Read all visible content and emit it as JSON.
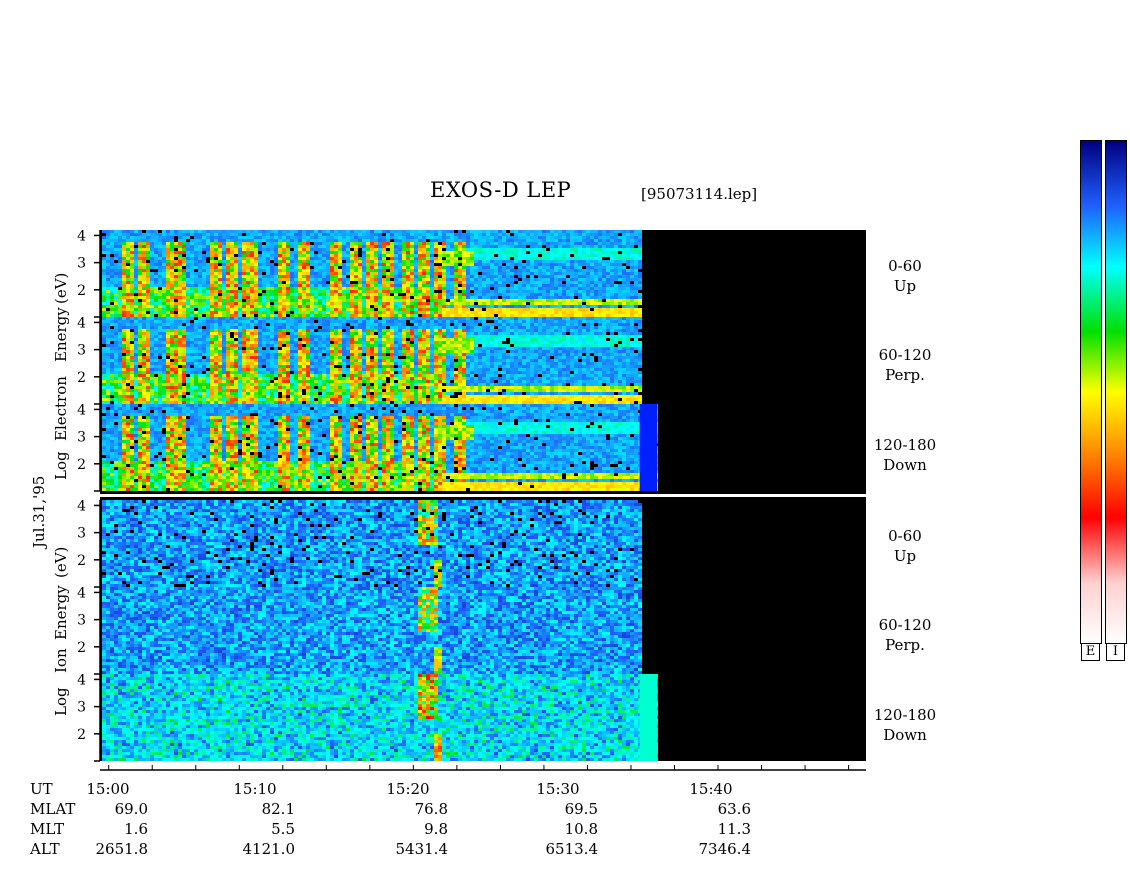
{
  "header": {
    "title": "EXOS-D LEP",
    "filename": "[95073114.lep]"
  },
  "side_labels": {
    "date": "Jul.31,'95",
    "electron": [
      "Log",
      "Electron",
      "Energy",
      "(eV)"
    ],
    "ion": [
      "Log",
      "Ion",
      "Energy",
      "(eV)"
    ]
  },
  "panels": [
    {
      "species": "electron",
      "pitch": "0-60",
      "dir": "Up"
    },
    {
      "species": "electron",
      "pitch": "60-120",
      "dir": "Perp."
    },
    {
      "species": "electron",
      "pitch": "120-180",
      "dir": "Down"
    },
    {
      "species": "ion",
      "pitch": "0-60",
      "dir": "Up"
    },
    {
      "species": "ion",
      "pitch": "60-120",
      "dir": "Perp."
    },
    {
      "species": "ion",
      "pitch": "120-180",
      "dir": "Down"
    }
  ],
  "colorbar": {
    "left_label": "E",
    "right_label": "I",
    "colors": [
      "#ffffff",
      "#ffd0d0",
      "#ff0000",
      "#ff8000",
      "#ffff00",
      "#00e000",
      "#00ffff",
      "#2060ff",
      "#000080"
    ]
  },
  "footer": {
    "rows": [
      {
        "name": "UT",
        "values": [
          "15:00",
          "15:10",
          "15:20",
          "15:30",
          "15:40"
        ]
      },
      {
        "name": "MLAT",
        "values": [
          "69.0",
          "82.1",
          "76.8",
          "69.5",
          "63.6"
        ]
      },
      {
        "name": "MLT",
        "values": [
          "1.6",
          "5.5",
          "9.8",
          "10.8",
          "11.3"
        ]
      },
      {
        "name": "ALT",
        "values": [
          "2651.8",
          "4121.0",
          "5431.4",
          "6513.4",
          "7346.4"
        ]
      }
    ]
  },
  "chart_data": {
    "type": "heatmap",
    "title": "EXOS-D LEP",
    "x_axis": {
      "label": "UT",
      "ticks": [
        "15:00",
        "15:10",
        "15:20",
        "15:30",
        "15:40"
      ],
      "range_minutes_after_1500": [
        -1.5,
        42.5
      ],
      "data_end_minutes": [
        29.5,
        30.5
      ]
    },
    "y_axis": {
      "label": "Log Energy (eV)",
      "ticks": [
        2,
        3,
        4
      ],
      "range": [
        1,
        4.2
      ]
    },
    "panels": [
      "Electron 0-60 Up",
      "Electron 60-120 Perp.",
      "Electron 120-180 Down",
      "Ion 0-60 Up",
      "Ion 60-120 Perp.",
      "Ion 120-180 Down"
    ],
    "colorscale": [
      "white",
      "pink",
      "red",
      "orange",
      "yellow",
      "green",
      "cyan",
      "blue",
      "dark blue"
    ]
  }
}
